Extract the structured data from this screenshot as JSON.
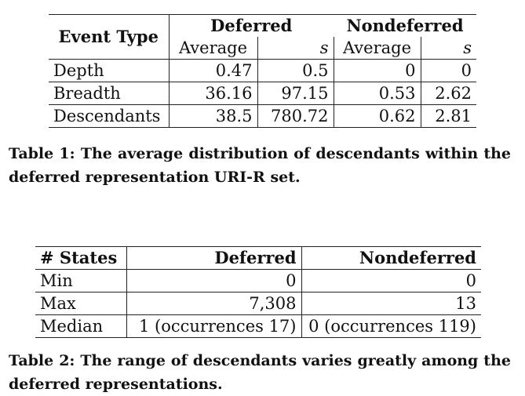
{
  "table1": {
    "header_event_type": "Event Type",
    "header_deferred": "Deferred",
    "header_nondeferred": "Nondeferred",
    "sub_average": "Average",
    "sub_s": "s",
    "rows": [
      {
        "label": "Depth",
        "d_avg": "0.47",
        "d_s": "0.5",
        "n_avg": "0",
        "n_s": "0"
      },
      {
        "label": "Breadth",
        "d_avg": "36.16",
        "d_s": "97.15",
        "n_avg": "0.53",
        "n_s": "2.62"
      },
      {
        "label": "Descendants",
        "d_avg": "38.5",
        "d_s": "780.72",
        "n_avg": "0.62",
        "n_s": "2.81"
      }
    ],
    "caption": "Table 1: The average distribution of descendants within the deferred representation URI-R set."
  },
  "table2": {
    "header_states": "# States",
    "header_deferred": "Deferred",
    "header_nondeferred": "Nondeferred",
    "rows": [
      {
        "label": "Min",
        "deferred": "0",
        "nondeferred": "0"
      },
      {
        "label": "Max",
        "deferred": "7,308",
        "nondeferred": "13"
      },
      {
        "label": "Median",
        "deferred": "1 (occurrences 17)",
        "nondeferred": "0 (occurrences 119)"
      }
    ],
    "caption": "Table 2: The range of descendants varies greatly among the deferred representations."
  }
}
